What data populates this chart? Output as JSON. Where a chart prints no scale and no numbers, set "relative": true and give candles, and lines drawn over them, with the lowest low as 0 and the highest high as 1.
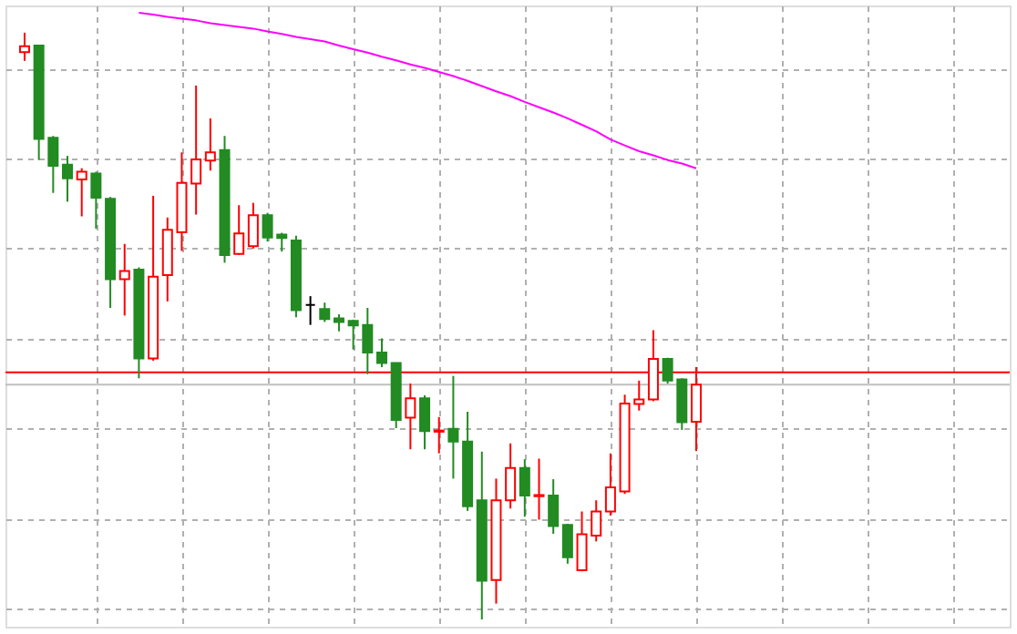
{
  "chart_data": {
    "type": "candlestick",
    "relative": true,
    "grid": true,
    "categories": [
      null,
      null,
      null,
      null,
      null,
      null,
      null,
      null,
      null,
      null,
      null,
      null,
      null,
      null,
      null,
      null,
      null,
      null,
      null,
      null,
      null,
      null,
      null,
      null,
      null,
      null,
      null,
      null,
      null,
      null,
      null,
      null,
      null,
      null,
      null,
      null,
      null,
      null,
      null,
      null,
      null,
      null,
      null,
      null,
      null,
      null,
      null,
      null
    ],
    "ohlc": [
      [
        0.967,
        1,
        0.952,
        0.977
      ],
      [
        0.978,
        0.978,
        0.783,
        0.819
      ],
      [
        0.821,
        0.824,
        0.727,
        0.773
      ],
      [
        0.775,
        0.79,
        0.712,
        0.752
      ],
      [
        0.75,
        0.769,
        0.687,
        0.763
      ],
      [
        0.76,
        0.763,
        0.666,
        0.719
      ],
      [
        0.717,
        0.72,
        0.531,
        0.58
      ],
      [
        0.58,
        0.64,
        0.518,
        0.594
      ],
      [
        0.596,
        0.6,
        0.411,
        0.445
      ],
      [
        0.445,
        0.722,
        0.441,
        0.584
      ],
      [
        0.587,
        0.685,
        0.542,
        0.664
      ],
      [
        0.66,
        0.796,
        0.628,
        0.744
      ],
      [
        0.743,
        0.91,
        0.69,
        0.784
      ],
      [
        0.782,
        0.854,
        0.765,
        0.796
      ],
      [
        0.8,
        0.824,
        0.608,
        0.621
      ],
      [
        0.623,
        0.706,
        0.621,
        0.658
      ],
      [
        0.636,
        0.71,
        0.632,
        0.689
      ],
      [
        0.689,
        0.693,
        0.644,
        0.651
      ],
      [
        0.656,
        0.659,
        0.627,
        0.65
      ],
      [
        0.646,
        0.654,
        0.515,
        0.527
      ],
      [
        0.536,
        0.551,
        0.502,
        0.536
      ],
      [
        0.529,
        0.54,
        0.507,
        0.512
      ],
      [
        0.513,
        0.52,
        0.491,
        0.507
      ],
      [
        0.509,
        0.511,
        0.46,
        0.501
      ],
      [
        0.502,
        0.531,
        0.418,
        0.455
      ],
      [
        0.455,
        0.479,
        0.43,
        0.437
      ],
      [
        0.437,
        0.437,
        0.326,
        0.34
      ],
      [
        0.344,
        0.402,
        0.29,
        0.377
      ],
      [
        0.377,
        0.382,
        0.29,
        0.321
      ],
      [
        0.32,
        0.345,
        0.283,
        0.322
      ],
      [
        0.325,
        0.415,
        0.24,
        0.303
      ],
      [
        0.303,
        0.354,
        0.185,
        0.193
      ],
      [
        0.203,
        0.286,
        0,
        0.066
      ],
      [
        0.067,
        0.24,
        0.027,
        0.203
      ],
      [
        0.203,
        0.3,
        0.189,
        0.258
      ],
      [
        0.258,
        0.273,
        0.175,
        0.211
      ],
      [
        0.21,
        0.274,
        0.17,
        0.212
      ],
      [
        0.211,
        0.239,
        0.146,
        0.159
      ],
      [
        0.161,
        0.163,
        0.095,
        0.106
      ],
      [
        0.084,
        0.184,
        0.082,
        0.145
      ],
      [
        0.143,
        0.203,
        0.133,
        0.184
      ],
      [
        0.184,
        0.283,
        0.177,
        0.225
      ],
      [
        0.218,
        0.383,
        0.214,
        0.368
      ],
      [
        0.367,
        0.407,
        0.356,
        0.375
      ],
      [
        0.375,
        0.493,
        0.372,
        0.444
      ],
      [
        0.444,
        0.446,
        0.402,
        0.407
      ],
      [
        0.409,
        0.411,
        0.323,
        0.336
      ],
      [
        0.337,
        0.43,
        0.287,
        0.4
      ]
    ],
    "colors": [
      "#ff0000",
      "#228b22",
      "#228b22",
      "#228b22",
      "#ff0000",
      "#228b22",
      "#228b22",
      "#ff0000",
      "#228b22",
      "#ff0000",
      "#ff0000",
      "#ff0000",
      "#ff0000",
      "#ff0000",
      "#228b22",
      "#ff0000",
      "#ff0000",
      "#228b22",
      "#228b22",
      "#228b22",
      "#000000",
      "#228b22",
      "#228b22",
      "#228b22",
      "#228b22",
      "#228b22",
      "#228b22",
      "#ff0000",
      "#228b22",
      "#ff0000",
      "#228b22",
      "#228b22",
      "#228b22",
      "#ff0000",
      "#ff0000",
      "#228b22",
      "#ff0000",
      "#228b22",
      "#228b22",
      "#ff0000",
      "#ff0000",
      "#ff0000",
      "#ff0000",
      "#ff0000",
      "#ff0000",
      "#228b22",
      "#228b22",
      "#ff0000"
    ],
    "series": [
      {
        "type": "line",
        "color": "#ff00ff",
        "values": [
          null,
          null,
          null,
          null,
          null,
          null,
          null,
          null,
          1.034,
          1.031,
          1.027,
          1.024,
          1.021,
          1.016,
          1.013,
          1.01,
          1.007,
          1.002,
          0.998,
          0.993,
          0.989,
          0.985,
          0.978,
          0.972,
          0.966,
          0.959,
          0.953,
          0.946,
          0.94,
          0.933,
          0.926,
          0.918,
          0.909,
          0.9,
          0.892,
          0.882,
          0.873,
          0.864,
          0.854,
          0.843,
          0.832,
          0.818,
          0.808,
          0.798,
          0.791,
          0.783,
          0.777,
          0.769
        ]
      }
    ],
    "ref_lines": [
      {
        "axis": "y",
        "value": 0.421,
        "color": "#ff0000"
      },
      {
        "axis": "y",
        "value": 0.4,
        "color": "#c0c0c0"
      }
    ]
  }
}
